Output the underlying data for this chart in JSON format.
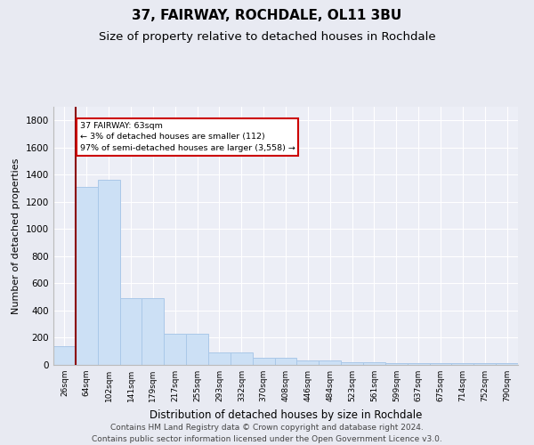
{
  "title": "37, FAIRWAY, ROCHDALE, OL11 3BU",
  "subtitle": "Size of property relative to detached houses in Rochdale",
  "xlabel": "Distribution of detached houses by size in Rochdale",
  "ylabel": "Number of detached properties",
  "categories": [
    "26sqm",
    "64sqm",
    "102sqm",
    "141sqm",
    "179sqm",
    "217sqm",
    "255sqm",
    "293sqm",
    "332sqm",
    "370sqm",
    "408sqm",
    "446sqm",
    "484sqm",
    "523sqm",
    "561sqm",
    "599sqm",
    "637sqm",
    "675sqm",
    "714sqm",
    "752sqm",
    "790sqm"
  ],
  "values": [
    140,
    1310,
    1360,
    490,
    490,
    230,
    230,
    90,
    90,
    50,
    50,
    30,
    30,
    20,
    20,
    15,
    15,
    10,
    10,
    10,
    10
  ],
  "bar_color": "#cce0f5",
  "bar_edge_color": "#aac8e8",
  "vline_color": "#8b0000",
  "annotation_text": "37 FAIRWAY: 63sqm\n← 3% of detached houses are smaller (112)\n97% of semi-detached houses are larger (3,558) →",
  "annotation_box_color": "#ffffff",
  "annotation_box_edge": "#cc0000",
  "ylim": [
    0,
    1900
  ],
  "yticks": [
    0,
    200,
    400,
    600,
    800,
    1000,
    1200,
    1400,
    1600,
    1800
  ],
  "footer": "Contains HM Land Registry data © Crown copyright and database right 2024.\nContains public sector information licensed under the Open Government Licence v3.0.",
  "bg_color": "#e8eaf2",
  "plot_bg_color": "#eceef6",
  "title_fontsize": 11,
  "subtitle_fontsize": 9.5,
  "xlabel_fontsize": 8.5,
  "ylabel_fontsize": 8,
  "footer_fontsize": 6.5,
  "tick_fontsize": 7.5,
  "xtick_fontsize": 6.5
}
